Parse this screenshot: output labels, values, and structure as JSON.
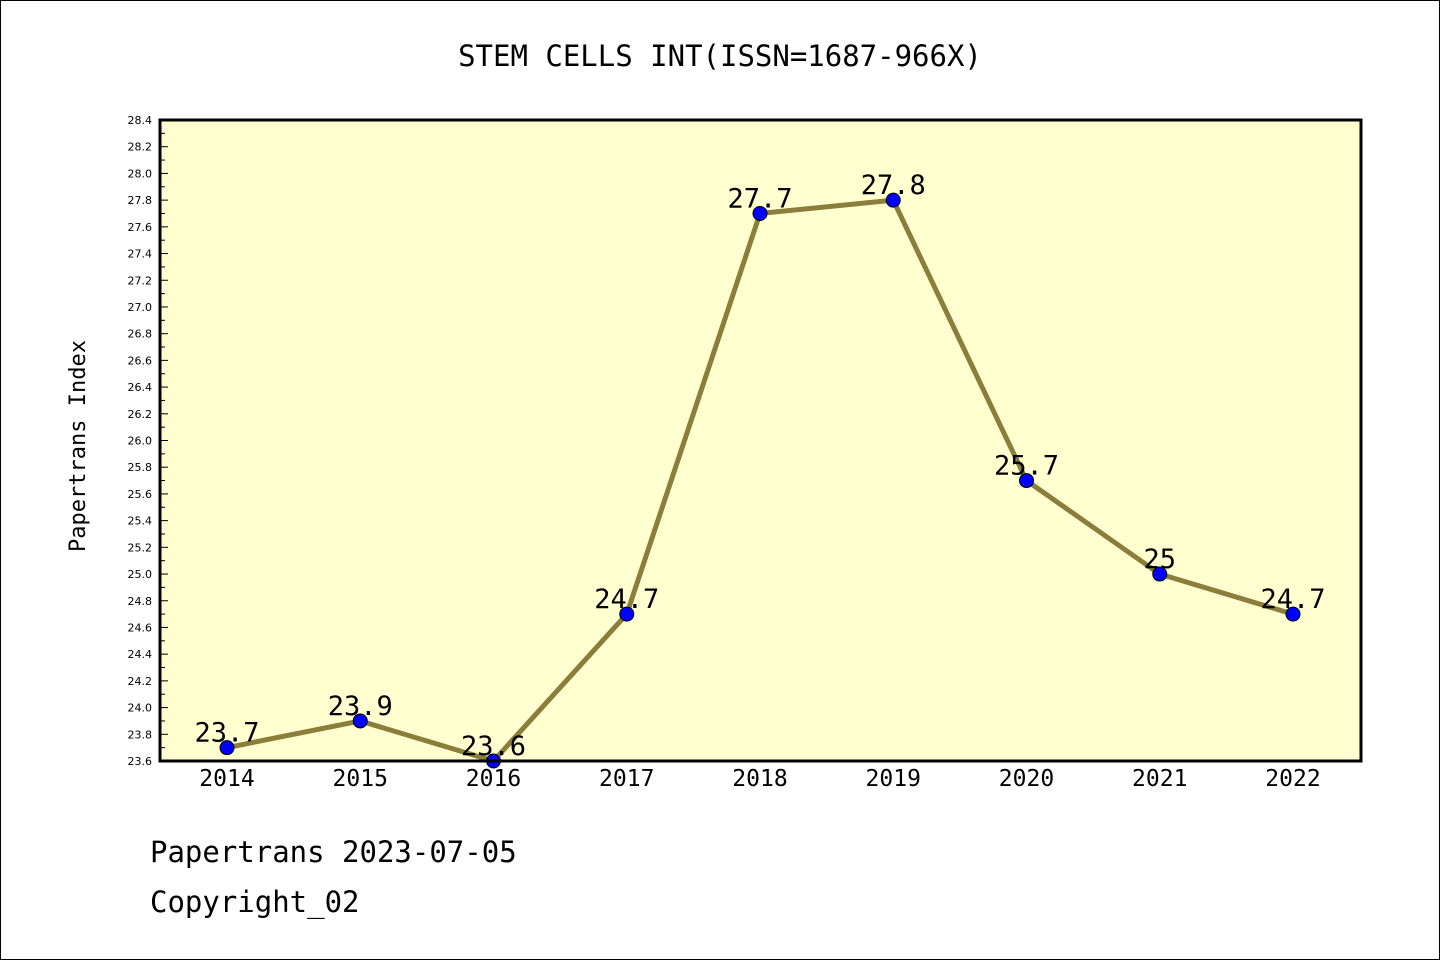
{
  "chart_data": {
    "type": "line",
    "title": "STEM CELLS INT(ISSN=1687-966X)",
    "ylabel": "Papertrans Index",
    "xlabel": "",
    "categories": [
      "2014",
      "2015",
      "2016",
      "2017",
      "2018",
      "2019",
      "2020",
      "2021",
      "2022"
    ],
    "values": [
      23.7,
      23.9,
      23.6,
      24.7,
      27.7,
      27.8,
      25.7,
      25.0,
      24.7
    ],
    "data_labels": [
      "23.7",
      "23.9",
      "23.6",
      "24.7",
      "27.7",
      "27.8",
      "25.7",
      "25",
      "24.7"
    ],
    "ylim": [
      23.6,
      28.4
    ],
    "yticks": [
      "23.6",
      "23.8",
      "24.0",
      "24.2",
      "24.4",
      "24.6",
      "24.8",
      "25.0",
      "25.2",
      "25.4",
      "25.6",
      "25.8",
      "26.0",
      "26.2",
      "26.4",
      "26.6",
      "26.8",
      "27.0",
      "27.2",
      "27.4",
      "27.6",
      "27.8",
      "28.0",
      "28.2",
      "28.4"
    ],
    "grid": false,
    "colors": {
      "plot_background": "#ffffd0",
      "line": "#8b7d3a",
      "marker": "#0000ff"
    }
  },
  "footer": {
    "line1": "Papertrans 2023-07-05",
    "line2": "Copyright_02"
  }
}
